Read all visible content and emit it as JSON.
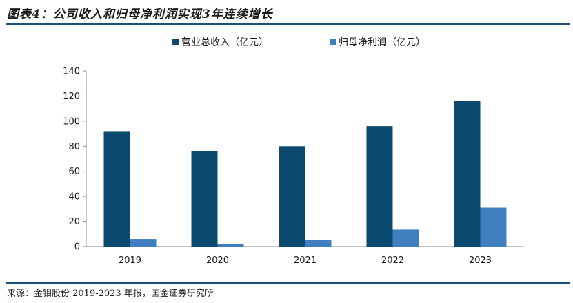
{
  "header": {
    "title": "图表4：公司收入和归母净利润实现3年连续增长"
  },
  "footer": {
    "source": "来源：金钼股份 2019-2023 年报，国金证券研究所"
  },
  "chart_data": {
    "type": "bar",
    "categories": [
      "2019",
      "2020",
      "2021",
      "2022",
      "2023"
    ],
    "series": [
      {
        "name": "营业总收入（亿元）",
        "color": "#0b4a6f",
        "values": [
          92,
          76,
          80,
          96,
          116
        ]
      },
      {
        "name": "归母净利润（亿元）",
        "color": "#3f7fbf",
        "values": [
          6,
          2,
          5,
          13.5,
          31
        ]
      }
    ],
    "title": "",
    "xlabel": "",
    "ylabel": "",
    "ylim": [
      0,
      140
    ],
    "yticks": [
      0,
      20,
      40,
      60,
      80,
      100,
      120,
      140
    ],
    "grid": false,
    "legend_position": "top-center"
  }
}
